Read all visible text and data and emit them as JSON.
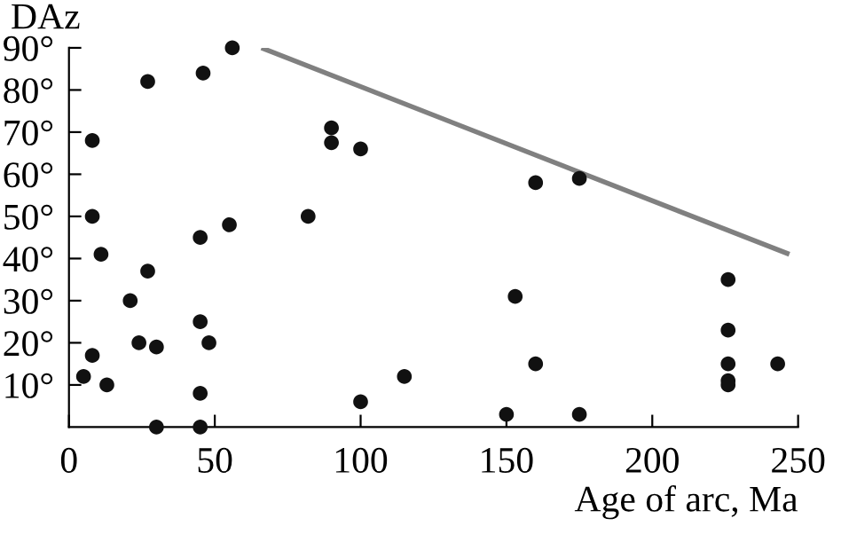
{
  "chart_data": {
    "type": "scatter",
    "xlabel": "Age of arc, Ma",
    "ylabel": "DAz",
    "xlim": [
      0,
      250
    ],
    "ylim": [
      0,
      90
    ],
    "xticks": [
      0,
      50,
      100,
      150,
      200,
      250
    ],
    "yticks": [
      {
        "value": 10,
        "label": "10°"
      },
      {
        "value": 20,
        "label": "20°"
      },
      {
        "value": 30,
        "label": "30°"
      },
      {
        "value": 40,
        "label": "40°"
      },
      {
        "value": 50,
        "label": "50°"
      },
      {
        "value": 60,
        "label": "60°"
      },
      {
        "value": 70,
        "label": "70°"
      },
      {
        "value": 80,
        "label": "80°"
      },
      {
        "value": 90,
        "label": "90°"
      }
    ],
    "grid": false,
    "legend": false,
    "series": [
      {
        "marker": "circle",
        "color": "#111111",
        "x": [
          8,
          27,
          46,
          56,
          90,
          90,
          100,
          8,
          55,
          82,
          11,
          45,
          27,
          21,
          45,
          24,
          30,
          48,
          8,
          5,
          13,
          45,
          30,
          45,
          100,
          115,
          153,
          160,
          150,
          175,
          226,
          226,
          226,
          226,
          226,
          243,
          160,
          175
        ],
        "values": [
          68,
          82,
          84,
          90,
          71,
          67.5,
          66,
          50,
          48,
          50,
          41,
          45,
          37,
          30,
          25,
          20,
          19,
          20,
          17,
          12,
          10,
          8,
          0,
          0,
          6,
          12,
          31,
          15,
          3,
          3,
          35,
          23,
          15,
          11,
          10,
          15,
          58,
          59
        ]
      },
      {
        "type": "line",
        "color": "#808080",
        "x": [
          66,
          247
        ],
        "values": [
          90,
          41
        ]
      }
    ]
  }
}
